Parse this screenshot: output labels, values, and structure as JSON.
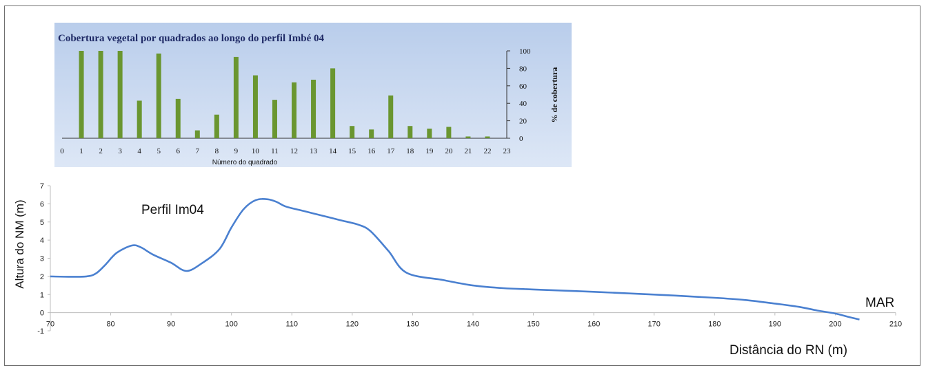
{
  "chart_data": [
    {
      "type": "bar",
      "title": "Cobertura vegetal por quadrados  ao longo do perfil Imbé 04",
      "xlabel": "Número do quadrado",
      "ylabel": "% de cobertura",
      "categories": [
        1,
        2,
        3,
        4,
        5,
        6,
        7,
        8,
        9,
        10,
        11,
        12,
        13,
        14,
        15,
        16,
        17,
        18,
        19,
        20,
        21,
        22
      ],
      "values": [
        100,
        100,
        100,
        43,
        97,
        45,
        9,
        27,
        93,
        72,
        44,
        64,
        67,
        80,
        14,
        10,
        49,
        14,
        11,
        13,
        2,
        2
      ],
      "xlim": [
        0,
        23
      ],
      "xticks": [
        "0",
        "1",
        "2",
        "3",
        "4",
        "5",
        "6",
        "7",
        "8",
        "9",
        "10",
        "11",
        "12",
        "13",
        "14",
        "15",
        "16",
        "17",
        "18",
        "19",
        "20",
        "21",
        "22",
        "23"
      ],
      "ylim": [
        0,
        100
      ],
      "yticks": [
        "0",
        "20",
        "40",
        "60",
        "80",
        "100"
      ],
      "bar_color": "#6a9630",
      "background": "#c9d9f0",
      "grid": false
    },
    {
      "type": "line",
      "xlabel": "Distância do RN (m)",
      "ylabel": "Altura do NM (m)",
      "annotations": [
        "Perfil Im04",
        "MAR"
      ],
      "xlim": [
        70,
        210
      ],
      "ylim": [
        -1,
        7
      ],
      "xticks": [
        "70",
        "80",
        "90",
        "100",
        "110",
        "120",
        "130",
        "140",
        "150",
        "160",
        "170",
        "180",
        "190",
        "200",
        "210"
      ],
      "yticks": [
        "-1",
        "0",
        "1",
        "2",
        "3",
        "4",
        "5",
        "6",
        "7"
      ],
      "x": [
        70,
        73,
        76,
        77.5,
        79,
        81,
        83.5,
        85,
        87,
        90,
        92.5,
        95,
        98,
        100,
        102,
        104,
        106,
        107.5,
        109,
        112,
        115,
        118,
        121,
        123,
        126,
        129,
        135,
        140,
        145,
        150,
        160,
        170,
        180,
        185,
        190,
        194,
        197,
        200,
        202,
        204
      ],
      "y": [
        2.0,
        1.98,
        2.0,
        2.15,
        2.6,
        3.3,
        3.7,
        3.6,
        3.2,
        2.75,
        2.3,
        2.7,
        3.5,
        4.7,
        5.7,
        6.2,
        6.25,
        6.1,
        5.85,
        5.6,
        5.35,
        5.1,
        4.85,
        4.5,
        3.4,
        2.2,
        1.8,
        1.5,
        1.35,
        1.28,
        1.15,
        1.0,
        0.82,
        0.7,
        0.5,
        0.32,
        0.12,
        -0.05,
        -0.22,
        -0.38
      ],
      "line_color": "#4a80d0",
      "grid": false
    }
  ]
}
